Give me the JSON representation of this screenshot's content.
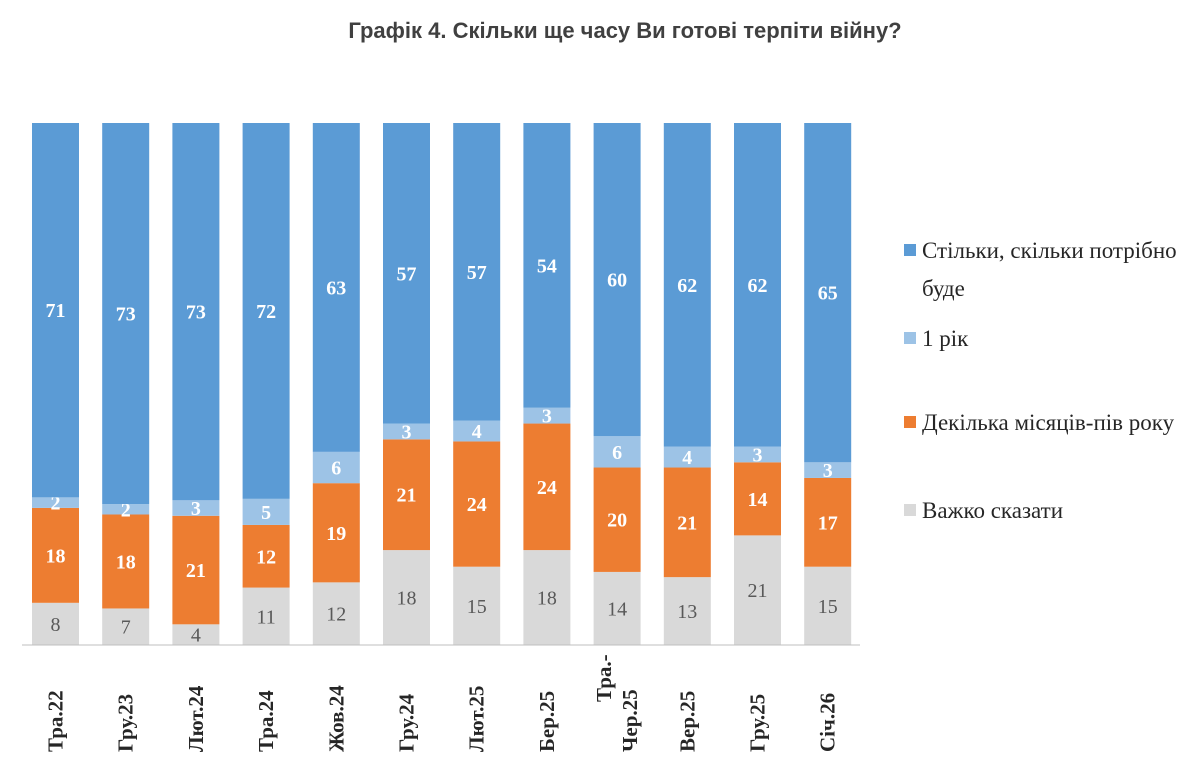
{
  "chart_data": {
    "type": "bar",
    "stacked": true,
    "normalized_to": 100,
    "title": "Графік 4. Скільки ще часу Ви готові терпіти війну?",
    "categories": [
      "Тра.22",
      "Гру.23",
      "Лют.24",
      "Тра.24",
      "Жов.24",
      "Гру.24",
      "Лют.25",
      "Бер.25",
      "Тра.-Чер.25",
      "Вер.25",
      "Гру.25",
      "Січ.26"
    ],
    "series": [
      {
        "name": "Важко сказати",
        "color": "#d9d9d9",
        "label_color": "#595959",
        "values": [
          8,
          7,
          4,
          11,
          12,
          18,
          15,
          18,
          14,
          13,
          21,
          15
        ]
      },
      {
        "name": "Декілька місяців-пів року",
        "color": "#ed7d31",
        "label_color": "#ffffff",
        "values": [
          18,
          18,
          21,
          12,
          19,
          21,
          24,
          24,
          20,
          21,
          14,
          17
        ]
      },
      {
        "name": "1 рік",
        "color": "#9dc3e6",
        "label_color": "#ffffff",
        "values": [
          2,
          2,
          3,
          5,
          6,
          3,
          4,
          3,
          6,
          4,
          3,
          3
        ]
      },
      {
        "name": "Стільки, скільки потрібно буде",
        "color": "#5b9bd5",
        "label_color": "#ffffff",
        "values": [
          71,
          73,
          73,
          72,
          63,
          57,
          57,
          54,
          60,
          62,
          62,
          65
        ]
      }
    ],
    "legend": {
      "placement": "right",
      "order": [
        {
          "label": "Стільки, скільки потрібно буде",
          "color": "#5b9bd5"
        },
        {
          "label": "1 рік",
          "color": "#9dc3e6"
        },
        {
          "label": "Декілька місяців-пів року",
          "color": "#ed7d31"
        },
        {
          "label": "Важко сказати",
          "color": "#d9d9d9"
        }
      ]
    },
    "grid": false,
    "y_axis_visible": false
  }
}
